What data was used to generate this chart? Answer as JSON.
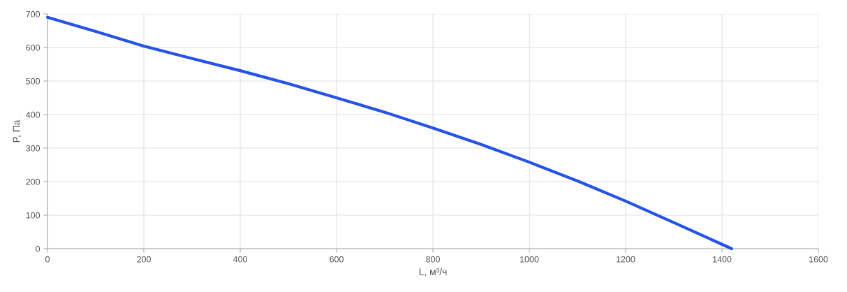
{
  "chart_data": {
    "type": "line",
    "xlabel": "L, м³/ч",
    "ylabel": "P, Па",
    "x": [
      0,
      100,
      200,
      300,
      400,
      500,
      600,
      700,
      800,
      900,
      1000,
      1100,
      1200,
      1300,
      1420
    ],
    "series": [
      {
        "color": "#2553e8",
        "values": [
          690,
          648,
          604,
          567,
          531,
          492,
          450,
          407,
          360,
          311,
          258,
          202,
          142,
          78,
          0
        ]
      }
    ],
    "xlim": [
      0,
      1600
    ],
    "ylim": [
      0,
      700
    ],
    "xticks": [
      0,
      200,
      400,
      600,
      800,
      1000,
      1200,
      1400,
      1600
    ],
    "yticks": [
      0,
      100,
      200,
      300,
      400,
      500,
      600,
      700
    ],
    "grid": true,
    "legend": false,
    "marker": "none",
    "line_style": "solid"
  }
}
